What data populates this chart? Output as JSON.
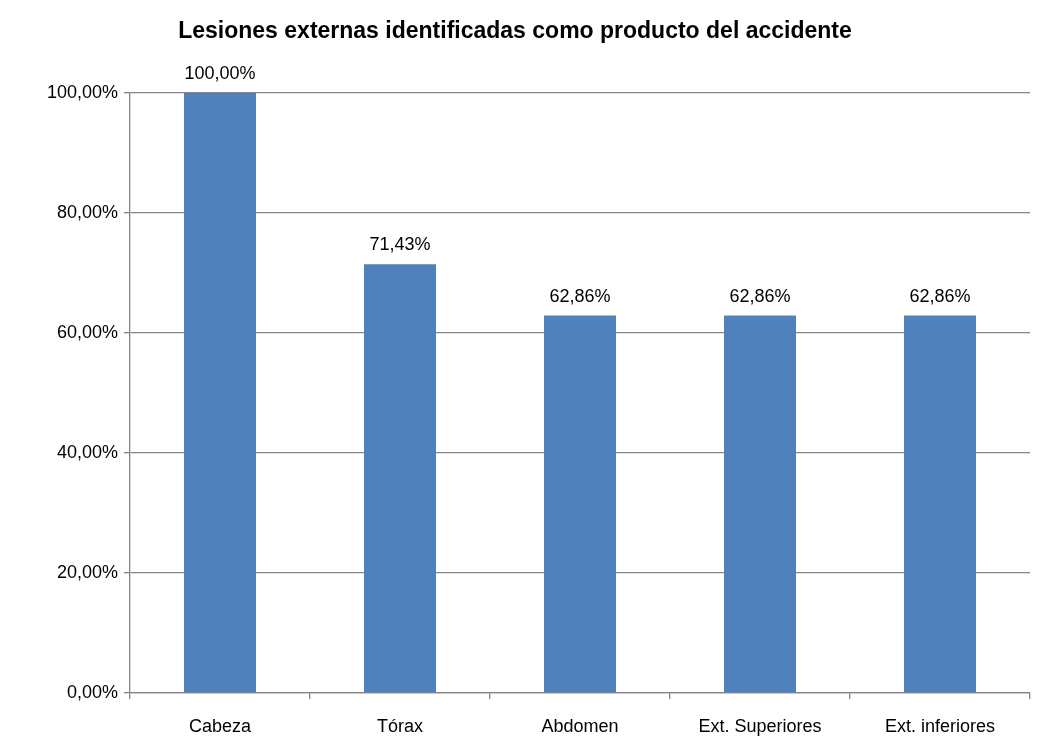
{
  "chart_data": {
    "type": "bar",
    "title": "Lesiones externas identificadas como producto del accidente",
    "categories": [
      "Cabeza",
      "Tórax",
      "Abdomen",
      "Ext. Superiores",
      "Ext. inferiores"
    ],
    "values": [
      100,
      71.43,
      62.86,
      62.86,
      62.86
    ],
    "value_labels": [
      "100,00%",
      "71,43%",
      "62,86%",
      "62,86%",
      "62,86%"
    ],
    "color": "#4f81bd",
    "ylim": [
      0,
      100
    ],
    "yticks": [
      {
        "value": 0,
        "label": "0,00%"
      },
      {
        "value": 20,
        "label": "20,00%"
      },
      {
        "value": 40,
        "label": "40,00%"
      },
      {
        "value": 60,
        "label": "60,00%"
      },
      {
        "value": 80,
        "label": "80,00%"
      },
      {
        "value": 100,
        "label": "100,00%"
      }
    ],
    "grid": "y"
  }
}
